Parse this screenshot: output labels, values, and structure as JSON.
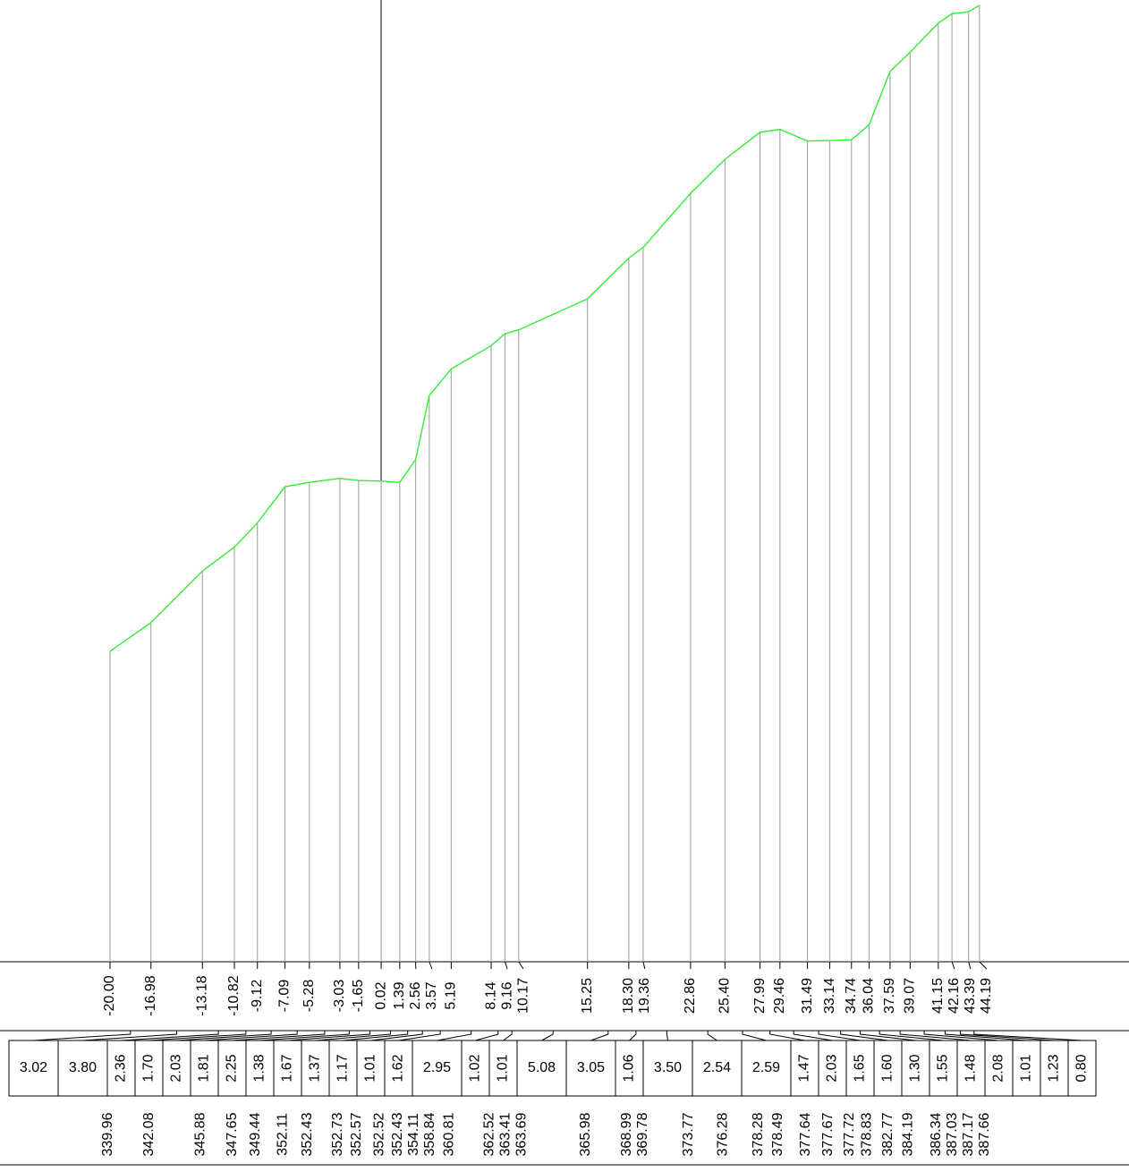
{
  "points": [
    {
      "offset": "-20.00",
      "elevation": "339.96"
    },
    {
      "offset": "-16.98",
      "elevation": "342.08"
    },
    {
      "offset": "-13.18",
      "elevation": "345.88"
    },
    {
      "offset": "-10.82",
      "elevation": "347.65"
    },
    {
      "offset": "-9.12",
      "elevation": "349.44"
    },
    {
      "offset": "-7.09",
      "elevation": "352.11"
    },
    {
      "offset": "-5.28",
      "elevation": "352.43"
    },
    {
      "offset": "-3.03",
      "elevation": "352.73"
    },
    {
      "offset": "-1.65",
      "elevation": "352.57"
    },
    {
      "offset": "0.02",
      "elevation": "352.52"
    },
    {
      "offset": "1.39",
      "elevation": "352.43"
    },
    {
      "offset": "2.56",
      "elevation": "354.11"
    },
    {
      "offset": "3.57",
      "elevation": "358.84"
    },
    {
      "offset": "5.19",
      "elevation": "360.81"
    },
    {
      "offset": "8.14",
      "elevation": "362.52"
    },
    {
      "offset": "9.16",
      "elevation": "363.41"
    },
    {
      "offset": "10.17",
      "elevation": "363.69"
    },
    {
      "offset": "15.25",
      "elevation": "365.98"
    },
    {
      "offset": "18.30",
      "elevation": "368.99"
    },
    {
      "offset": "19.36",
      "elevation": "369.78"
    },
    {
      "offset": "22.86",
      "elevation": "373.77"
    },
    {
      "offset": "25.40",
      "elevation": "376.28"
    },
    {
      "offset": "27.99",
      "elevation": "378.28"
    },
    {
      "offset": "29.46",
      "elevation": "378.49"
    },
    {
      "offset": "31.49",
      "elevation": "377.64"
    },
    {
      "offset": "33.14",
      "elevation": "377.67"
    },
    {
      "offset": "34.74",
      "elevation": "377.72"
    },
    {
      "offset": "36.04",
      "elevation": "378.83"
    },
    {
      "offset": "37.59",
      "elevation": "382.77"
    },
    {
      "offset": "39.07",
      "elevation": "384.19"
    },
    {
      "offset": "41.15",
      "elevation": "386.34"
    },
    {
      "offset": "42.16",
      "elevation": "387.03"
    },
    {
      "offset": "43.39",
      "elevation": "387.17"
    },
    {
      "offset": "44.19",
      "elevation": "387.66"
    }
  ],
  "segments": [
    "3.02",
    "3.80",
    "2.36",
    "1.70",
    "2.03",
    "1.81",
    "2.25",
    "1.38",
    "1.67",
    "1.37",
    "1.17",
    "1.01",
    "1.62",
    "2.95",
    "1.02",
    "1.01",
    "5.08",
    "3.05",
    "1.06",
    "3.50",
    "2.54",
    "2.59",
    "1.47",
    "2.03",
    "1.65",
    "1.60",
    "1.30",
    "1.55",
    "1.48",
    "2.08",
    "1.01",
    "1.23",
    "0.80"
  ]
}
